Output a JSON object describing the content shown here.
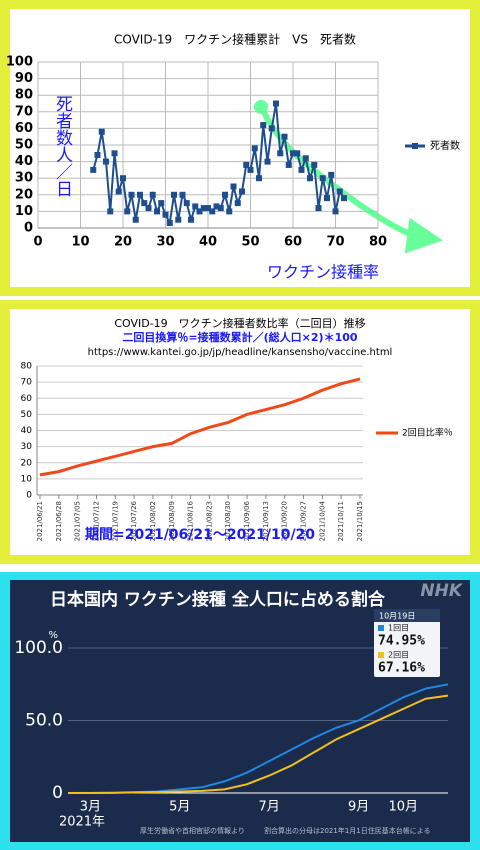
{
  "chart_data": [
    {
      "type": "line",
      "title": "COVID-19　ワクチン接種累計　VS　死者数",
      "y_label": "死者数人／日",
      "x_label": "ワクチン接種率",
      "x": [
        13,
        14,
        15,
        16,
        17,
        18,
        19,
        20,
        21,
        22,
        23,
        24,
        25,
        26,
        27,
        28,
        29,
        30,
        31,
        32,
        33,
        34,
        35,
        36,
        37,
        38,
        39,
        40,
        41,
        42,
        43,
        44,
        45,
        46,
        47,
        48,
        49,
        50,
        51,
        52,
        53,
        54,
        55,
        56,
        57,
        58,
        59,
        60,
        61,
        62,
        63,
        64,
        65,
        66,
        67,
        68,
        69,
        70,
        71,
        72
      ],
      "series": [
        {
          "name": "死者数",
          "color": "#1f4e8c",
          "values": [
            35,
            44,
            58,
            40,
            10,
            45,
            22,
            30,
            10,
            20,
            5,
            20,
            15,
            12,
            20,
            10,
            15,
            8,
            3,
            20,
            5,
            20,
            15,
            5,
            13,
            10,
            12,
            12,
            10,
            13,
            12,
            20,
            10,
            25,
            15,
            22,
            38,
            35,
            48,
            30,
            62,
            40,
            60,
            75,
            45,
            55,
            38,
            45,
            45,
            35,
            42,
            30,
            38,
            12,
            30,
            18,
            32,
            10,
            22,
            18
          ]
        }
      ],
      "markers": "square",
      "legend": "right",
      "grid": true,
      "xlim": [
        0,
        80
      ],
      "xticks": [
        0,
        10,
        20,
        30,
        40,
        50,
        60,
        70,
        80
      ],
      "ylim": [
        0,
        100
      ],
      "yticks": [
        0,
        10,
        20,
        30,
        40,
        50,
        60,
        70,
        80,
        90,
        100
      ]
    },
    {
      "type": "line",
      "title": "COVID-19　ワクチン接種者数比率（二回目）推移",
      "subtitle": "二回目換算％=接種数累計／(総人口×2)＊100",
      "source": "https://www.kantei.go.jp/jp/headline/kansensho/vaccine.html",
      "note": "期間=2021/06/21～2021/10/20",
      "categories": [
        "2021/06/21",
        "2021/06/28",
        "2021/07/05",
        "2021/07/12",
        "2021/07/19",
        "2021/07/26",
        "2021/08/02",
        "2021/08/09",
        "2021/08/16",
        "2021/08/23",
        "2021/08/30",
        "2021/09/06",
        "2021/09/13",
        "2021/09/20",
        "2021/09/27",
        "2021/10/04",
        "2021/10/11",
        "2021/10/15"
      ],
      "series": [
        {
          "name": "2回目比率％",
          "color": "#f04a1a",
          "values": [
            12.5,
            14.5,
            18,
            21,
            24,
            27,
            30,
            32,
            38,
            42,
            45,
            50,
            53,
            56,
            60,
            65,
            69,
            72
          ]
        }
      ],
      "legend": "right",
      "grid": true,
      "ylim": [
        0,
        80
      ],
      "yticks": [
        0,
        10,
        20,
        30,
        40,
        50,
        60,
        70,
        80
      ]
    },
    {
      "type": "line",
      "title": "日本国内 ワクチン接種 全人口に占める割合",
      "logo": "NHK",
      "y_unit": "%",
      "year_label": "2021年",
      "legend_title": "10月19日",
      "footnote_left": "厚生労働省や首相官邸の情報より",
      "footnote_right": "割合算出の分母は2021年1月1日住民基本台帳による",
      "categories": [
        null,
        "3月",
        null,
        null,
        null,
        "5月",
        null,
        null,
        null,
        "7月",
        null,
        null,
        null,
        "9月",
        null,
        "10月",
        null,
        null
      ],
      "series": [
        {
          "name": "1回目",
          "color": "#1e88e5",
          "values": [
            0,
            0.1,
            0.3,
            0.6,
            1,
            2.5,
            4,
            8,
            14,
            22,
            30,
            38,
            45,
            50,
            58,
            66,
            72,
            74.95
          ],
          "value_labels": [
            null,
            null,
            null,
            null,
            null,
            null,
            null,
            null,
            null,
            null,
            null,
            null,
            null,
            null,
            null,
            null,
            null,
            "74.95%"
          ]
        },
        {
          "name": "2回目",
          "color": "#f0c020",
          "values": [
            0,
            0,
            0.1,
            0.4,
            0.7,
            1,
            1.5,
            2.5,
            6,
            12,
            19,
            28,
            37,
            44,
            51,
            58,
            65,
            67.16
          ],
          "value_labels": [
            null,
            null,
            null,
            null,
            null,
            null,
            null,
            null,
            null,
            null,
            null,
            null,
            null,
            null,
            null,
            null,
            null,
            "67.16%"
          ]
        }
      ],
      "legend": "top-right",
      "grid": true,
      "ylim": [
        0,
        110
      ],
      "yticks": [
        {
          "value": 0,
          "label": "0"
        },
        {
          "value": 50,
          "label": "50.0"
        },
        {
          "value": 100,
          "label": "100.0"
        }
      ]
    }
  ]
}
